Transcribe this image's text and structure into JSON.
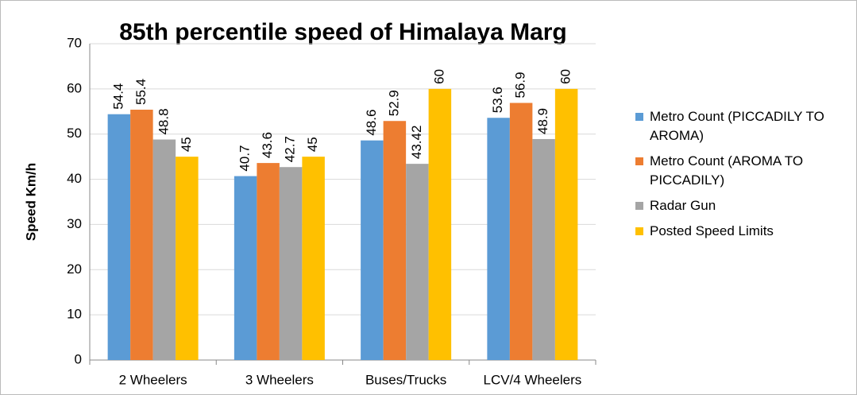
{
  "chart_data": {
    "type": "bar",
    "title": "85th percentile speed of Himalaya Marg",
    "y_axis_label": "Speed Km/h",
    "categories": [
      "2 Wheelers",
      "3 Wheelers",
      "Buses/Trucks",
      "LCV/4 Wheelers"
    ],
    "series": [
      {
        "name": "Metro Count (PICCADILY TO AROMA)",
        "color": "#5b9bd5",
        "values": [
          54.4,
          40.7,
          48.6,
          53.6
        ]
      },
      {
        "name": "Metro Count (AROMA TO PICCADILY)",
        "color": "#ed7d31",
        "values": [
          55.4,
          43.6,
          52.9,
          56.9
        ]
      },
      {
        "name": "Radar Gun",
        "color": "#a5a5a5",
        "values": [
          48.8,
          42.7,
          43.42,
          48.9
        ]
      },
      {
        "name": "Posted Speed Limits",
        "color": "#ffc000",
        "values": [
          45,
          45,
          60,
          60
        ]
      }
    ],
    "ylim": [
      0,
      70
    ],
    "yticks": [
      0,
      10,
      20,
      30,
      40,
      50,
      60,
      70
    ],
    "grid": true,
    "legend": "right"
  }
}
